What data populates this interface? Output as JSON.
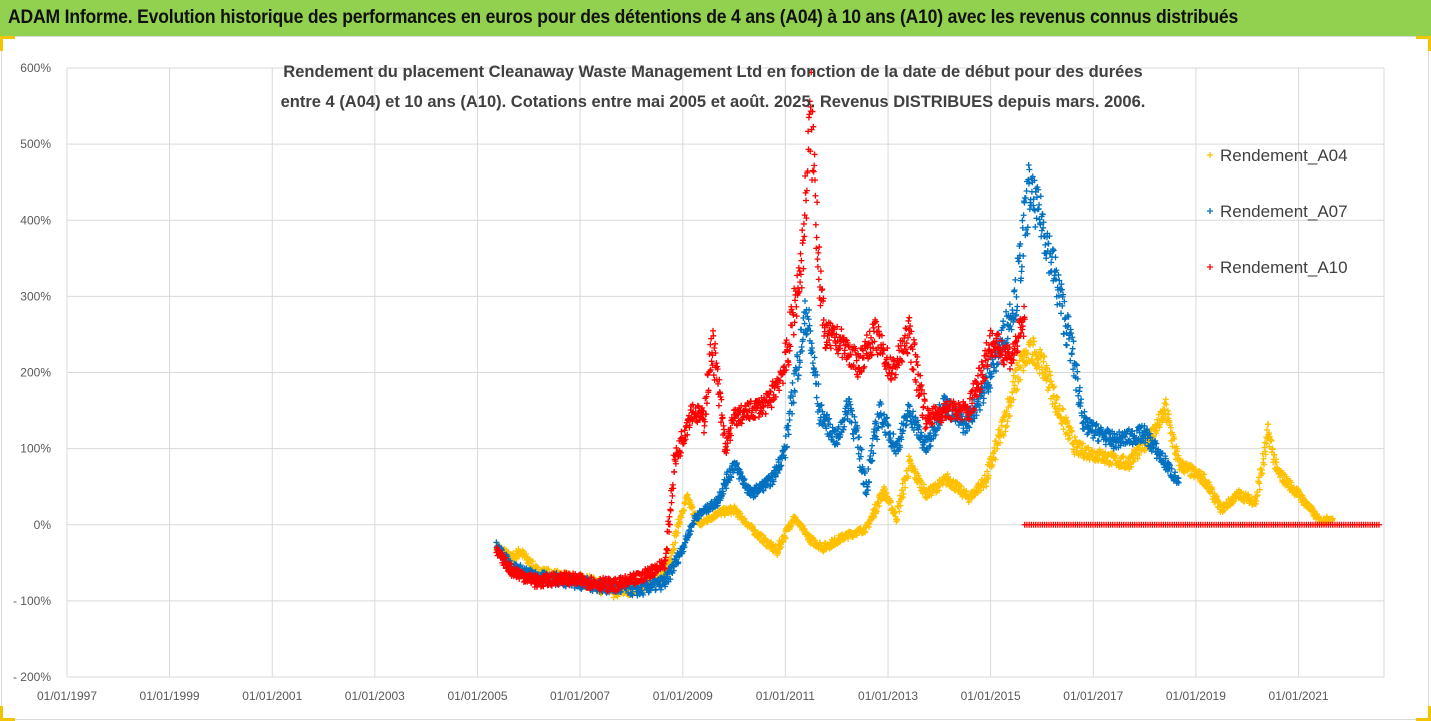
{
  "banner": {
    "title": "ADAM Informe. Evolution historique des performances en euros pour des détentions de 4 ans (A04) à 10 ans (A10) avec les revenus connus distribués"
  },
  "colors": {
    "banner_bg": "#92d050",
    "A04": "#ffc000",
    "A07": "#0070c0",
    "A10": "#ff0000",
    "grid": "#d9d9d9",
    "corner_accent": "#f2c500"
  },
  "chart_data": {
    "type": "scatter",
    "marker": "plus",
    "title_lines": [
      "Rendement du placement Cleanaway Waste Management Ltd en fonction de la date de début pour des durées",
      "entre 4 (A04) et 10 ans (A10). Cotations entre mai 2005 et août. 2025. Revenus DISTRIBUES depuis mars. 2006."
    ],
    "xlabel": "",
    "ylabel": "",
    "x_range": [
      "1997-01-01",
      "2022-09-01"
    ],
    "x_ticks": [
      "01/01/1997",
      "01/01/1999",
      "01/01/2001",
      "01/01/2003",
      "01/01/2005",
      "01/01/2007",
      "01/01/2009",
      "01/01/2011",
      "01/01/2013",
      "01/01/2015",
      "01/01/2017",
      "01/01/2019",
      "01/01/2021"
    ],
    "ylim": [
      -200,
      600
    ],
    "y_ticks": [
      -200,
      -100,
      0,
      100,
      200,
      300,
      400,
      500,
      600
    ],
    "y_tick_labels": [
      "- 200%",
      "- 100%",
      "0%",
      "100%",
      "200%",
      "300%",
      "400%",
      "500%",
      "600%"
    ],
    "grid": true,
    "legend_position": "right",
    "series": [
      {
        "name": "Rendement_A04",
        "color": "#ffc000",
        "points": [
          [
            "2005-05-15",
            -28
          ],
          [
            "2005-09-01",
            -45
          ],
          [
            "2005-11-01",
            -35
          ],
          [
            "2006-03-01",
            -62
          ],
          [
            "2006-09-01",
            -70
          ],
          [
            "2007-03-01",
            -75
          ],
          [
            "2007-09-01",
            -88
          ],
          [
            "2008-03-01",
            -80
          ],
          [
            "2008-09-01",
            -65
          ],
          [
            "2008-12-01",
            0
          ],
          [
            "2009-02-01",
            35
          ],
          [
            "2009-05-01",
            0
          ],
          [
            "2009-09-01",
            15
          ],
          [
            "2010-01-01",
            20
          ],
          [
            "2010-06-01",
            -10
          ],
          [
            "2010-11-01",
            -35
          ],
          [
            "2011-03-01",
            10
          ],
          [
            "2011-07-01",
            -20
          ],
          [
            "2011-10-01",
            -30
          ],
          [
            "2012-03-01",
            -15
          ],
          [
            "2012-08-01",
            -5
          ],
          [
            "2012-12-01",
            45
          ],
          [
            "2013-03-01",
            10
          ],
          [
            "2013-06-01",
            80
          ],
          [
            "2013-10-01",
            40
          ],
          [
            "2014-03-01",
            60
          ],
          [
            "2014-08-01",
            35
          ],
          [
            "2014-12-01",
            60
          ],
          [
            "2015-04-01",
            130
          ],
          [
            "2015-08-01",
            210
          ],
          [
            "2015-11-01",
            230
          ],
          [
            "2016-02-01",
            200
          ],
          [
            "2016-05-01",
            150
          ],
          [
            "2016-09-01",
            100
          ],
          [
            "2017-03-01",
            90
          ],
          [
            "2017-09-01",
            80
          ],
          [
            "2018-03-01",
            120
          ],
          [
            "2018-06-01",
            150
          ],
          [
            "2018-09-01",
            80
          ],
          [
            "2019-03-01",
            60
          ],
          [
            "2019-07-01",
            20
          ],
          [
            "2019-11-01",
            40
          ],
          [
            "2020-03-01",
            30
          ],
          [
            "2020-06-01",
            120
          ],
          [
            "2020-08-01",
            70
          ],
          [
            "2021-01-01",
            40
          ],
          [
            "2021-06-01",
            5
          ],
          [
            "2021-09-01",
            8
          ]
        ]
      },
      {
        "name": "Rendement_A07",
        "color": "#0070c0",
        "points": [
          [
            "2005-05-15",
            -28
          ],
          [
            "2005-09-01",
            -55
          ],
          [
            "2006-03-01",
            -70
          ],
          [
            "2006-09-01",
            -72
          ],
          [
            "2007-03-01",
            -78
          ],
          [
            "2007-09-01",
            -82
          ],
          [
            "2008-03-01",
            -85
          ],
          [
            "2008-09-01",
            -75
          ],
          [
            "2009-01-01",
            -30
          ],
          [
            "2009-04-01",
            10
          ],
          [
            "2009-09-01",
            30
          ],
          [
            "2010-01-01",
            80
          ],
          [
            "2010-05-01",
            40
          ],
          [
            "2010-10-01",
            60
          ],
          [
            "2011-01-01",
            100
          ],
          [
            "2011-03-01",
            180
          ],
          [
            "2011-06-01",
            280
          ],
          [
            "2011-09-01",
            150
          ],
          [
            "2012-01-01",
            110
          ],
          [
            "2012-04-01",
            160
          ],
          [
            "2012-08-01",
            50
          ],
          [
            "2012-11-01",
            150
          ],
          [
            "2013-03-01",
            100
          ],
          [
            "2013-06-01",
            150
          ],
          [
            "2013-10-01",
            100
          ],
          [
            "2014-02-01",
            160
          ],
          [
            "2014-07-01",
            130
          ],
          [
            "2014-11-01",
            170
          ],
          [
            "2015-03-01",
            230
          ],
          [
            "2015-07-01",
            300
          ],
          [
            "2015-10-01",
            440
          ],
          [
            "2016-01-01",
            400
          ],
          [
            "2016-04-01",
            330
          ],
          [
            "2016-08-01",
            230
          ],
          [
            "2016-11-01",
            130
          ],
          [
            "2017-06-01",
            110
          ],
          [
            "2018-01-01",
            120
          ],
          [
            "2018-06-01",
            80
          ],
          [
            "2018-09-01",
            55
          ]
        ]
      },
      {
        "name": "Rendement_A10",
        "color": "#ff0000",
        "points": [
          [
            "2005-05-15",
            -35
          ],
          [
            "2005-09-01",
            -60
          ],
          [
            "2006-03-01",
            -75
          ],
          [
            "2006-09-01",
            -70
          ],
          [
            "2007-03-01",
            -75
          ],
          [
            "2007-09-01",
            -80
          ],
          [
            "2008-03-01",
            -70
          ],
          [
            "2008-09-01",
            -50
          ],
          [
            "2008-11-01",
            80
          ],
          [
            "2009-03-01",
            150
          ],
          [
            "2009-06-01",
            140
          ],
          [
            "2009-08-01",
            240
          ],
          [
            "2009-11-01",
            100
          ],
          [
            "2010-01-01",
            140
          ],
          [
            "2010-05-01",
            150
          ],
          [
            "2010-09-01",
            160
          ],
          [
            "2011-01-01",
            210
          ],
          [
            "2011-05-01",
            350
          ],
          [
            "2011-07-01",
            540
          ],
          [
            "2011-10-01",
            250
          ],
          [
            "2012-02-01",
            240
          ],
          [
            "2012-06-01",
            210
          ],
          [
            "2012-10-01",
            250
          ],
          [
            "2013-02-01",
            200
          ],
          [
            "2013-06-01",
            250
          ],
          [
            "2013-10-01",
            140
          ],
          [
            "2014-03-01",
            150
          ],
          [
            "2014-08-01",
            150
          ],
          [
            "2015-01-01",
            240
          ],
          [
            "2015-06-01",
            220
          ],
          [
            "2015-09-01",
            270
          ]
        ],
        "zero_segment": [
          "2015-09-01",
          "2022-08-01",
          0
        ]
      }
    ]
  }
}
